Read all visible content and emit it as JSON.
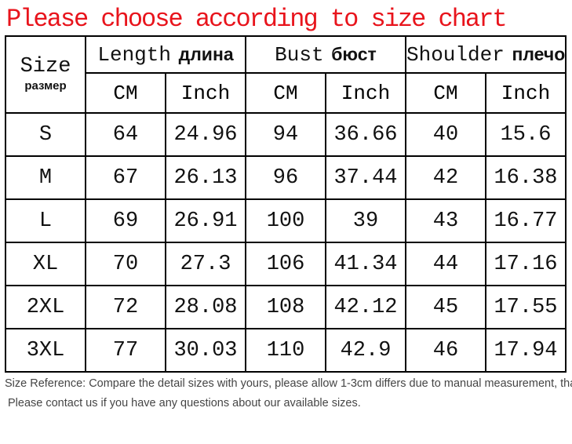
{
  "title": "Please choose according to size chart",
  "colors": {
    "title_red": "#e8141c",
    "border_black": "#000000",
    "footnote_gray": "#454545"
  },
  "table": {
    "corner": {
      "en": "Size",
      "ru": "размер"
    },
    "groups": [
      {
        "en": "Length",
        "ru": "длина"
      },
      {
        "en": "Bust",
        "ru": "бюст"
      },
      {
        "en": "Shoulder",
        "ru": "плечо"
      }
    ],
    "units": [
      "CM",
      "Inch"
    ],
    "rows": [
      [
        "S",
        "64",
        "24.96",
        "94",
        "36.66",
        "40",
        "15.6"
      ],
      [
        "M",
        "67",
        "26.13",
        "96",
        "37.44",
        "42",
        "16.38"
      ],
      [
        "L",
        "69",
        "26.91",
        "100",
        "39",
        "43",
        "16.77"
      ],
      [
        "XL",
        "70",
        "27.3",
        "106",
        "41.34",
        "44",
        "17.16"
      ],
      [
        "2XL",
        "72",
        "28.08",
        "108",
        "42.12",
        "45",
        "17.55"
      ],
      [
        "3XL",
        "77",
        "30.03",
        "110",
        "42.9",
        "46",
        "17.94"
      ]
    ]
  },
  "footnotes": [
    "Size Reference: Compare the detail sizes with yours, please allow 1-3cm differs due to manual measurement, thanks!",
    "Please contact us if you have any questions about our available sizes."
  ],
  "chart_data": {
    "type": "table",
    "title": "Please choose according to size chart",
    "columns": [
      "Size",
      "Length CM",
      "Length Inch",
      "Bust CM",
      "Bust Inch",
      "Shoulder CM",
      "Shoulder Inch"
    ],
    "rows": [
      [
        "S",
        64,
        24.96,
        94,
        36.66,
        40,
        15.6
      ],
      [
        "M",
        67,
        26.13,
        96,
        37.44,
        42,
        16.38
      ],
      [
        "L",
        69,
        26.91,
        100,
        39,
        43,
        16.77
      ],
      [
        "XL",
        70,
        27.3,
        106,
        41.34,
        44,
        17.16
      ],
      [
        "2XL",
        72,
        28.08,
        108,
        42.12,
        45,
        17.55
      ],
      [
        "3XL",
        77,
        30.03,
        110,
        42.9,
        46,
        17.94
      ]
    ]
  }
}
